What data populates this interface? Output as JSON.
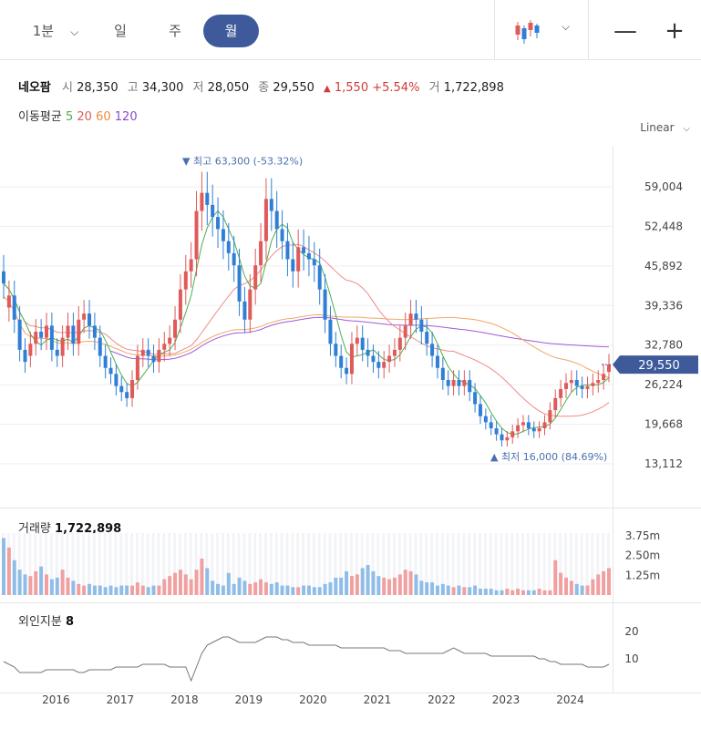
{
  "toolbar": {
    "tabs": [
      {
        "label": "1분",
        "active": false
      },
      {
        "label": "일",
        "active": false
      },
      {
        "label": "주",
        "active": false
      },
      {
        "label": "월",
        "active": true
      }
    ],
    "chart_style_icon": "candlestick-icon",
    "zoom_out_label": "—",
    "zoom_in_label": "+"
  },
  "quote": {
    "name": "네오팜",
    "open_label": "시",
    "open": "28,350",
    "high_label": "고",
    "high": "34,300",
    "low_label": "저",
    "low": "28,050",
    "close_label": "종",
    "close": "29,550",
    "change_arrow": "▲",
    "change": "1,550",
    "change_pct": "+5.54%",
    "volume_label": "거",
    "volume": "1,722,898"
  },
  "ma": {
    "title": "이동평균",
    "p5": "5",
    "p20": "20",
    "p60": "60",
    "p120": "120"
  },
  "scale_label": "Linear",
  "volume_panel": {
    "label": "거래량",
    "value": "1,722,898"
  },
  "foreign_panel": {
    "label": "외인지분",
    "value": "8"
  },
  "colors": {
    "up": "#e05a5a",
    "down": "#2f7fd6",
    "ma5": "#4caf50",
    "ma20": "#ef8a8a",
    "ma60": "#f0a868",
    "ma120": "#a05ad8",
    "accent": "#3e5a9a",
    "annotation": "#4a6fb0"
  },
  "chart_data": {
    "type": "candlestick",
    "price_axis": {
      "ticks": [
        "59,004",
        "52,448",
        "45,892",
        "39,336",
        "32,780",
        "26,224",
        "19,668",
        "13,112"
      ],
      "tick_values": [
        59004,
        52448,
        45892,
        39336,
        32780,
        26224,
        19668,
        13112
      ],
      "current_price_tag": "29,550",
      "current_price": 29550
    },
    "annotations": {
      "high": {
        "arrow": "▼",
        "text": "최고 63,300 (-53.32%)",
        "value": 63300
      },
      "low": {
        "arrow": "▲",
        "text": "최저 16,000 (84.69%)",
        "value": 16000
      }
    },
    "x_axis": {
      "labels": [
        "2016",
        "2017",
        "2018",
        "2019",
        "2020",
        "2021",
        "2022",
        "2023",
        "2024"
      ],
      "start_year": 2016
    },
    "volume_axis": {
      "ticks": [
        "3.75m",
        "2.50m",
        "1.25m"
      ],
      "tick_values": [
        3750000,
        2500000,
        1250000
      ]
    },
    "foreign_axis": {
      "ticks": [
        "20",
        "10"
      ],
      "tick_values": [
        20,
        10
      ]
    },
    "months": {
      "first": "2015-08",
      "close": [
        43000,
        41000,
        37000,
        32000,
        30000,
        33000,
        35000,
        34000,
        36000,
        32000,
        31000,
        34000,
        36000,
        33000,
        37000,
        38000,
        36000,
        34000,
        31000,
        29000,
        28000,
        26000,
        25000,
        24000,
        27000,
        31000,
        32000,
        31000,
        30000,
        32000,
        33000,
        34000,
        37000,
        42000,
        45000,
        47000,
        55000,
        58000,
        56000,
        54000,
        52000,
        50000,
        48000,
        46000,
        40000,
        37000,
        42000,
        46000,
        50000,
        57000,
        55000,
        52000,
        50000,
        47000,
        45000,
        49000,
        48000,
        47000,
        46000,
        42000,
        37000,
        33000,
        31000,
        29000,
        28000,
        33000,
        34000,
        32000,
        31000,
        30000,
        29000,
        30000,
        31000,
        32000,
        34000,
        36000,
        38000,
        37000,
        35000,
        33000,
        31000,
        29000,
        27000,
        26000,
        27000,
        26000,
        27000,
        25000,
        23000,
        21000,
        20000,
        19000,
        18000,
        17000,
        17500,
        18500,
        19500,
        20000,
        19000,
        18500,
        19000,
        20000,
        22000,
        24000,
        25500,
        26500,
        27000,
        26000,
        25500,
        26000,
        26500,
        27000,
        28000,
        29550
      ],
      "open_delta": [
        2000,
        -2000,
        4000,
        5000,
        2000,
        -2000,
        -2000,
        1000,
        -2000,
        4000,
        1000,
        -3000,
        -2000,
        3000,
        -4000,
        -1000,
        2000,
        2000,
        3000,
        2000,
        1000,
        2000,
        1000,
        1000,
        -3000,
        -4000,
        -1000,
        1000,
        1000,
        -2000,
        -1000,
        -1000,
        -3000,
        -5000,
        -3000,
        -2000,
        -8000,
        -3000,
        2000,
        2000,
        2000,
        2000,
        2000,
        2000,
        6000,
        3000,
        -5000,
        -4000,
        -4000,
        -7000,
        2000,
        3000,
        2000,
        3000,
        2000,
        -4000,
        1000,
        1000,
        1000,
        4000,
        5000,
        4000,
        2000,
        2000,
        1000,
        -5000,
        -1000,
        2000,
        1000,
        1000,
        1000,
        -1000,
        -1000,
        -1000,
        -2000,
        -2000,
        -2000,
        1000,
        2000,
        2000,
        2000,
        2000,
        2000,
        1000,
        -1000,
        1000,
        -1000,
        2000,
        2000,
        2000,
        1000,
        1000,
        1000,
        1000,
        -500,
        -1000,
        -1000,
        -500,
        1000,
        500,
        -500,
        -1000,
        -2000,
        -2000,
        -1500,
        -1000,
        -500,
        1000,
        500,
        -500,
        -500,
        -500,
        -1000,
        -1200
      ],
      "volume": [
        3.6,
        3.0,
        2.2,
        1.6,
        1.3,
        1.2,
        1.5,
        1.8,
        1.3,
        1.0,
        1.1,
        1.6,
        1.1,
        0.9,
        0.7,
        0.6,
        0.7,
        0.6,
        0.6,
        0.5,
        0.6,
        0.5,
        0.6,
        0.6,
        0.6,
        0.8,
        0.6,
        0.5,
        0.6,
        0.6,
        1.0,
        1.2,
        1.4,
        1.6,
        1.3,
        1.0,
        1.6,
        2.3,
        1.7,
        0.9,
        0.7,
        0.6,
        1.4,
        0.7,
        1.1,
        0.9,
        0.7,
        0.8,
        1.0,
        0.8,
        0.7,
        0.8,
        0.6,
        0.6,
        0.5,
        0.5,
        0.6,
        0.6,
        0.5,
        0.5,
        0.7,
        0.8,
        1.1,
        1.1,
        1.5,
        1.2,
        1.3,
        1.7,
        1.9,
        1.5,
        1.2,
        1.1,
        1.0,
        1.1,
        1.3,
        1.6,
        1.5,
        1.3,
        0.9,
        0.8,
        0.8,
        0.6,
        0.7,
        0.6,
        0.5,
        0.6,
        0.5,
        0.5,
        0.6,
        0.4,
        0.4,
        0.4,
        0.3,
        0.3,
        0.4,
        0.3,
        0.4,
        0.3,
        0.3,
        0.3,
        0.4,
        0.3,
        0.3,
        2.2,
        1.4,
        1.1,
        0.9,
        0.7,
        0.6,
        0.6,
        1.0,
        1.3,
        1.5,
        1.7
      ],
      "foreign": [
        9,
        8,
        7,
        5,
        5,
        5,
        5,
        5,
        6,
        6,
        6,
        6,
        6,
        6,
        5,
        5,
        6,
        6,
        6,
        6,
        6,
        7,
        7,
        7,
        7,
        7,
        8,
        8,
        8,
        8,
        8,
        7,
        7,
        7,
        7,
        2,
        7,
        12,
        15,
        16,
        17,
        18,
        18,
        17,
        16,
        16,
        16,
        16,
        17,
        18,
        18,
        18,
        17,
        17,
        16,
        16,
        16,
        15,
        15,
        15,
        15,
        15,
        15,
        14,
        14,
        14,
        14,
        14,
        14,
        14,
        14,
        14,
        13,
        13,
        13,
        12,
        12,
        12,
        12,
        12,
        12,
        12,
        12,
        13,
        14,
        13,
        12,
        12,
        12,
        12,
        12,
        11,
        11,
        11,
        11,
        11,
        11,
        11,
        11,
        11,
        10,
        10,
        9,
        9,
        8,
        8,
        8,
        8,
        8,
        7,
        7,
        7,
        7,
        8
      ]
    }
  }
}
